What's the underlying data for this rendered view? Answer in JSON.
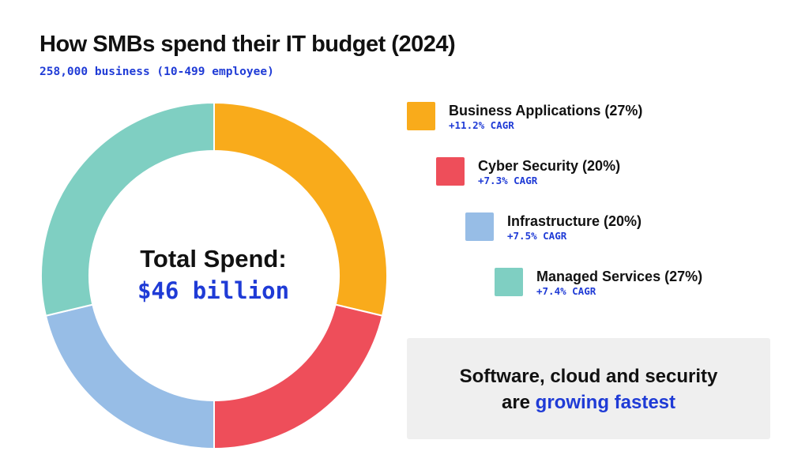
{
  "chart_data": {
    "type": "pie",
    "title": "How SMBs spend their IT budget (2024)",
    "subtitle": "258,000 business (10-499 employee)",
    "center": {
      "title": "Total Spend:",
      "value": "$46 billion"
    },
    "slices": [
      {
        "label": "Business Applications (27%)",
        "value": 27,
        "growth": "+11.2% CAGR",
        "color": "#f9ab1b"
      },
      {
        "label": "Cyber Security (20%)",
        "value": 20,
        "growth": "+7.3% CAGR",
        "color": "#ee4e5a"
      },
      {
        "label": "Infrastructure (20%)",
        "value": 20,
        "growth": "+7.5% CAGR",
        "color": "#97bde6"
      },
      {
        "label": "Managed Services (27%)",
        "value": 27,
        "growth": "+7.4% CAGR",
        "color": "#7fcfc2"
      }
    ],
    "legend_position": "right"
  },
  "callout": {
    "line1": "Software, cloud and security",
    "line2_prefix": "are ",
    "line2_highlight": "growing fastest"
  },
  "colors": {
    "accent_blue": "#1f3bd6",
    "callout_bg": "#efefef",
    "text": "#111111"
  }
}
